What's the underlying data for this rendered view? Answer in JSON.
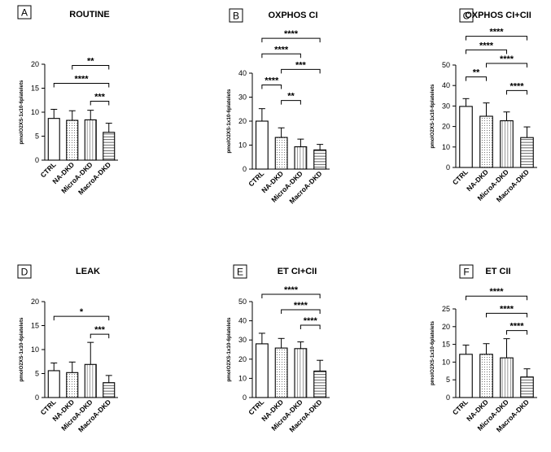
{
  "chart_data": [
    {
      "type": "bar",
      "letter": "A",
      "title": "ROUTINE",
      "ylabel": "pmolO2XS-1x10-6platelets",
      "ylim": [
        0,
        20
      ],
      "yticks": [
        "0",
        "5",
        "10",
        "15",
        "20"
      ],
      "categories": [
        "CTRL",
        "NA-DKD",
        "MicroA-DKD",
        "MacroA-DKD"
      ],
      "values": [
        8.7,
        8.3,
        8.4,
        5.8
      ],
      "errors": [
        1.9,
        2.0,
        2.0,
        1.9
      ],
      "patterns": [
        "none",
        "dots",
        "vlines",
        "hlines"
      ],
      "significance": [
        {
          "from": 1,
          "to": 3,
          "label": "**"
        },
        {
          "from": 0,
          "to": 3,
          "label": "****"
        },
        {
          "from": 2,
          "to": 3,
          "label": "***"
        }
      ]
    },
    {
      "type": "bar",
      "letter": "B",
      "title": "OXPHOS CI",
      "ylabel": "pmolO2XS-1x10-6platelets",
      "ylim": [
        0,
        40
      ],
      "yticks": [
        "0",
        "10",
        "20",
        "30",
        "40"
      ],
      "categories": [
        "CTRL",
        "NA-DKD",
        "MicroA-DKD",
        "MacroA-DKD"
      ],
      "values": [
        20,
        13.2,
        9.3,
        8
      ],
      "errors": [
        5.2,
        4.0,
        3.2,
        2.3
      ],
      "patterns": [
        "none",
        "dots",
        "vlines",
        "hlines"
      ],
      "significance": [
        {
          "from": 0,
          "to": 3,
          "label": "****"
        },
        {
          "from": 0,
          "to": 2,
          "label": "****"
        },
        {
          "from": 1,
          "to": 3,
          "label": "***"
        },
        {
          "from": 0,
          "to": 1,
          "label": "****"
        },
        {
          "from": 1,
          "to": 2,
          "label": "**"
        }
      ]
    },
    {
      "type": "bar",
      "letter": "C",
      "title": "OXPHOS CI+CII",
      "ylabel": "pmolO2XS-1x10-6platelets",
      "ylim": [
        0,
        50
      ],
      "yticks": [
        "0",
        "10",
        "20",
        "30",
        "40",
        "50"
      ],
      "categories": [
        "CTRL",
        "NA-DKD",
        "MicroA-DKD",
        "MacroA-DKD"
      ],
      "values": [
        29.8,
        25,
        22.8,
        14.6
      ],
      "errors": [
        3.8,
        6.5,
        4.3,
        5.2
      ],
      "patterns": [
        "none",
        "dots",
        "vlines",
        "hlines"
      ],
      "significance": [
        {
          "from": 0,
          "to": 3,
          "label": "****"
        },
        {
          "from": 0,
          "to": 2,
          "label": "****"
        },
        {
          "from": 1,
          "to": 3,
          "label": "****"
        },
        {
          "from": 0,
          "to": 1,
          "label": "**"
        },
        {
          "from": 2,
          "to": 3,
          "label": "****"
        }
      ]
    },
    {
      "type": "bar",
      "letter": "D",
      "title": "LEAK",
      "ylabel": "pmolO2XS-1x10-6platelets",
      "ylim": [
        0,
        20
      ],
      "yticks": [
        "0",
        "5",
        "10",
        "15",
        "20"
      ],
      "categories": [
        "CTRL",
        "NA-DKD",
        "MicroA-DKD",
        "MacroA-DKD"
      ],
      "values": [
        5.6,
        5.2,
        6.9,
        3.1
      ],
      "errors": [
        1.6,
        2.2,
        4.6,
        1.5
      ],
      "patterns": [
        "none",
        "dots",
        "vlines",
        "hlines"
      ],
      "significance": [
        {
          "from": 0,
          "to": 3,
          "label": "*"
        },
        {
          "from": 2,
          "to": 3,
          "label": "***"
        }
      ]
    },
    {
      "type": "bar",
      "letter": "E",
      "title": "ET CI+CII",
      "ylabel": "pmolO2XS-1x10-6platelets",
      "ylim": [
        0,
        50
      ],
      "yticks": [
        "0",
        "10",
        "20",
        "30",
        "40",
        "50"
      ],
      "categories": [
        "CTRL",
        "NA-DKD",
        "MicroA-DKD",
        "MacroA-DKD"
      ],
      "values": [
        28,
        25.8,
        25.5,
        13.8
      ],
      "errors": [
        5.5,
        5.0,
        3.5,
        5.6
      ],
      "patterns": [
        "none",
        "dots",
        "vlines",
        "hlines"
      ],
      "significance": [
        {
          "from": 0,
          "to": 3,
          "label": "****"
        },
        {
          "from": 1,
          "to": 3,
          "label": "****"
        },
        {
          "from": 2,
          "to": 3,
          "label": "****"
        }
      ]
    },
    {
      "type": "bar",
      "letter": "F",
      "title": "ET CII",
      "ylabel": "pmolO2XS-1x10-6platelets",
      "ylim": [
        0,
        25
      ],
      "yticks": [
        "0",
        "5",
        "10",
        "15",
        "20",
        "25"
      ],
      "categories": [
        "CTRL",
        "NA-DKD",
        "MicroA-DKD",
        "MacroA-DKD"
      ],
      "values": [
        12.2,
        12.2,
        11.2,
        5.8
      ],
      "errors": [
        2.6,
        3.0,
        5.4,
        2.3
      ],
      "patterns": [
        "none",
        "dots",
        "vlines",
        "hlines"
      ],
      "significance": [
        {
          "from": 0,
          "to": 3,
          "label": "****"
        },
        {
          "from": 1,
          "to": 3,
          "label": "****"
        },
        {
          "from": 2,
          "to": 3,
          "label": "****"
        }
      ]
    }
  ]
}
